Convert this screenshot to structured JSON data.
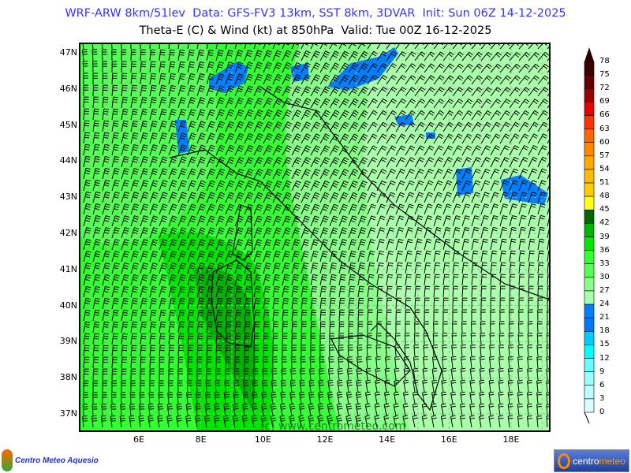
{
  "header": {
    "line1": "WRF-ARW 8km/51lev  Data: GFS-FV3 13km, SST 8km, 3DVAR  Init: Sun 06Z 14-12-2025",
    "line2": "Theta-E (C) & Wind (kt) at 850hPa  Valid: Tue 00Z 16-12-2025"
  },
  "map": {
    "lat_labels": [
      "47N",
      "46N",
      "45N",
      "44N",
      "43N",
      "42N",
      "41N",
      "40N",
      "39N",
      "38N",
      "37N"
    ],
    "lon_labels": [
      "6E",
      "8E",
      "10E",
      "12E",
      "14E",
      "16E",
      "18E"
    ],
    "lon_range": [
      4.1,
      19.2
    ],
    "lat_range": [
      36.6,
      47.3
    ],
    "watermark": "(c) www.centrometeo.com"
  },
  "colorbar": {
    "levels": [
      "78",
      "75",
      "72",
      "69",
      "66",
      "63",
      "60",
      "57",
      "54",
      "51",
      "48",
      "45",
      "42",
      "39",
      "36",
      "33",
      "30",
      "27",
      "24",
      "21",
      "18",
      "15",
      "12",
      "9",
      "6",
      "3",
      "0"
    ],
    "colors": [
      "#400000",
      "#660000",
      "#990000",
      "#e60000",
      "#ff3300",
      "#ff6600",
      "#ff8800",
      "#ffaa00",
      "#ffbb00",
      "#ffcc00",
      "#ffff1a",
      "#006600",
      "#00b300",
      "#00e600",
      "#33ff33",
      "#55ff55",
      "#88ff88",
      "#aaffaa",
      "#0080ff",
      "#0077ff",
      "#00ccff",
      "#00ffff",
      "#66ffff",
      "#99ffff",
      "#bbffff",
      "#d9ffff"
    ],
    "top_color": "#2a0000"
  },
  "logos": {
    "left": "Centro Meteo Aquesio",
    "right_a": "centro",
    "right_b": "meteo"
  }
}
